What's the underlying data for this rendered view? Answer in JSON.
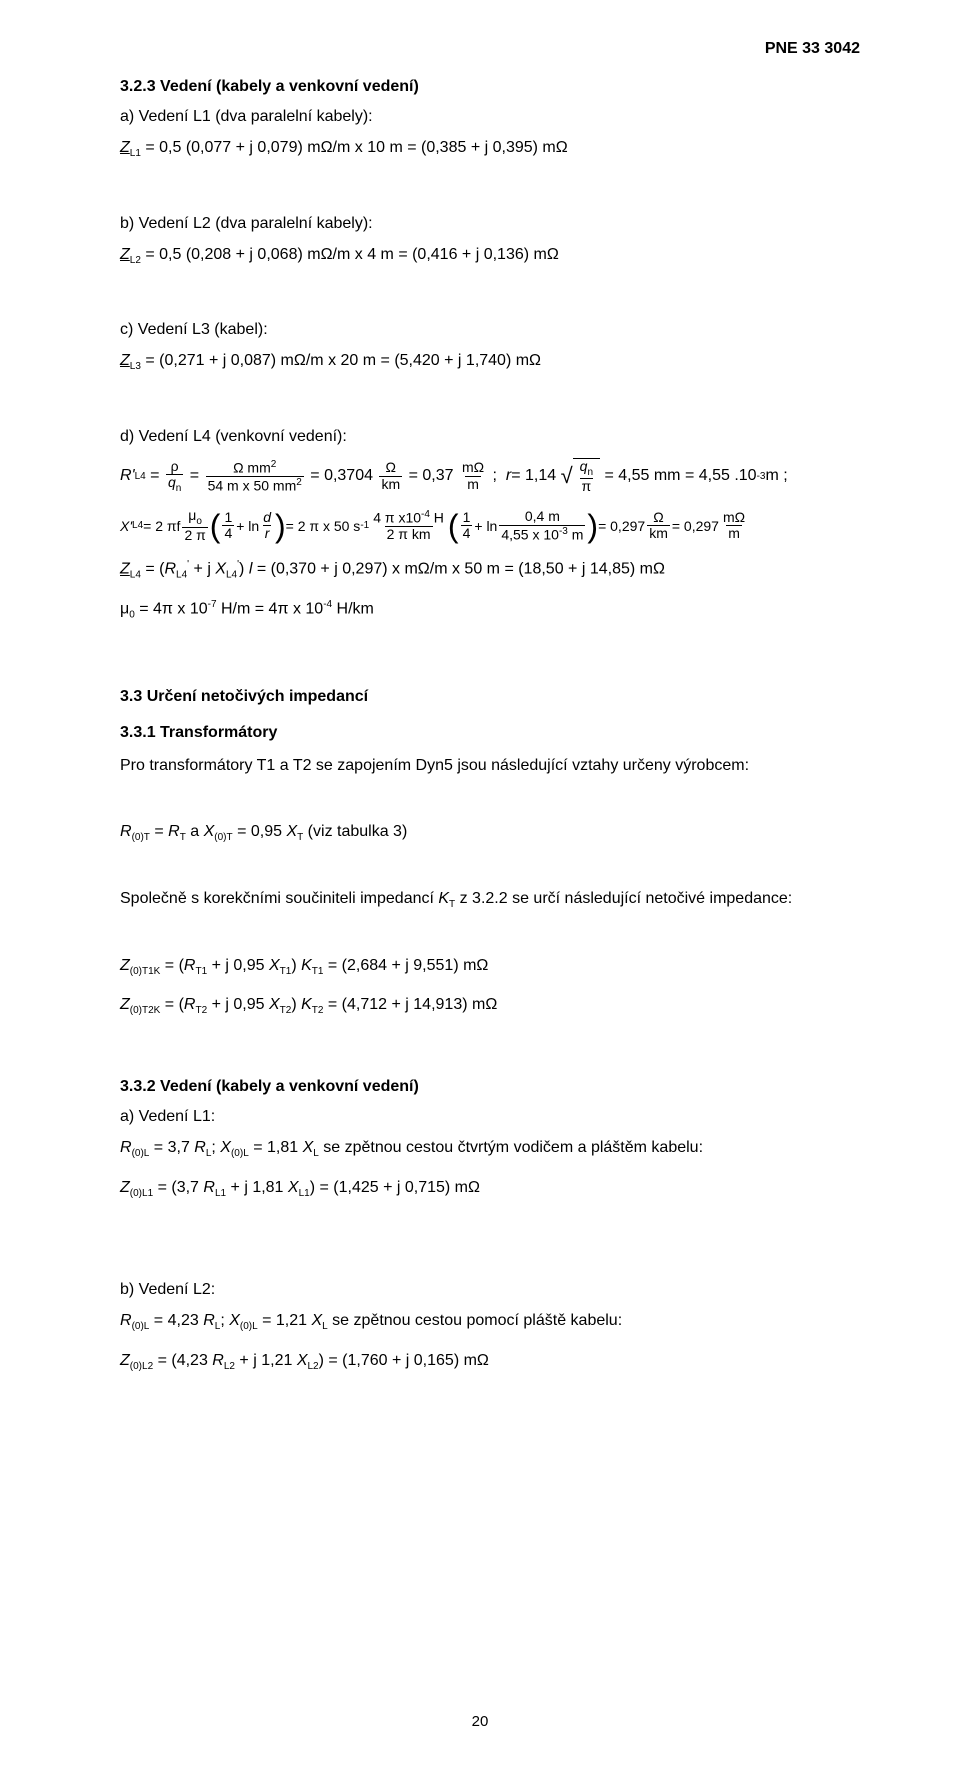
{
  "doc": {
    "header": "PNE 33 3042",
    "page_num": "20"
  },
  "s323": {
    "heading": "3.2.3   Vedení (kabely a venkovní vedení)",
    "a_label": "a) Vedení L1 (dva paralelní kabely):",
    "a_eq": "Z_L1 = 0,5 (0,077 + j 0,079) mΩ/m x 10 m = (0,385 + j 0,395) mΩ",
    "b_label": "b) Vedení L2 (dva paralelní kabely):",
    "b_eq": "Z_L2 = 0,5 (0,208 + j 0,068) mΩ/m x 4 m = (0,416 + j 0,136) mΩ",
    "c_label": "c) Vedení L3 (kabel):",
    "c_eq": "Z_L3 = (0,271 + j 0,087) mΩ/m x 20 m = (5,420 + j 1,740) mΩ",
    "d_label": "d) Vedení L4 (venkovní vedení):",
    "d_R": {
      "lhs": "R'",
      "lhs_sub": "L4",
      "rho": "ρ",
      "qn": "q_n",
      "ohm_mm2": "Ω mm²",
      "den": "54 m x 50 mm²",
      "v1": "0,3704",
      "u1n": "Ω",
      "u1d": "km",
      "v2": "0,37",
      "u2n": "mΩ",
      "u2d": "m",
      "r_eq": "r = 1,14",
      "sqrt_num": "q_n",
      "sqrt_den": "π",
      "val3": "4,55 mm = 4,55 .10⁻³ m ;"
    },
    "d_X": {
      "lhs": "X'",
      "lhs_sub": "L4",
      "pre": "2 πf",
      "mu_num": "μₒ",
      "mu_den": "2 π",
      "quarter": "1",
      "quarter_d": "4",
      "ln": "ln",
      "d": "d",
      "r": "r",
      "mid": "2 π x 50 s⁻¹",
      "f2n": "4 π x 10⁻⁴ H",
      "f2d": "2 π km",
      "ln2n": "0,4 m",
      "ln2d": "4,55 x 10⁻³ m",
      "val1": "0,297",
      "u1n": "Ω",
      "u1d": "km",
      "val2": "0,297",
      "u2n": "mΩ",
      "u2d": "m"
    },
    "d_Z": "Z_L4 = (R_L4' + j X_L4') l = (0,370 + j 0,297) x mΩ/m x 50 m = (18,50 + j 14,85) mΩ",
    "d_mu": "μ₀ = 4π x 10⁻⁷ H/m = 4π x 10⁻⁴ H/km"
  },
  "s33": {
    "heading": "3.3   Určení netočivých impedancí",
    "s331_heading": "3.3.1   Transformátory",
    "s331_body": "Pro transformátory T1 a T2 se zapojením Dyn5 jsou následující vztahy určeny výrobcem:",
    "s331_eq": "R_(0)T = R_T a X_(0)T = 0,95 X_T (viz tabulka 3)",
    "s331_p2": "Společně s korekčními součiniteli impedancí K_T z 3.2.2 se určí následující netočivé impedance:",
    "s331_eqA": "Z_(0)T1K = (R_T1 + j 0,95 X_T1) K_T1 = (2,684 + j 9,551) mΩ",
    "s331_eqB": "Z_(0)T2K = (R_T2 + j 0,95 X_T2) K_T2 = (4,712 + j 14,913) mΩ"
  },
  "s332": {
    "heading": "3.3.2   Vedení (kabely a venkovní vedení)",
    "a_label": "a) Vedení L1:",
    "a_p": "R_(0)L = 3,7 R_L; X_(0)L = 1,81 X_L se zpětnou cestou čtvrtým vodičem a pláštěm kabelu:",
    "a_eq": "Z_(0)L1 = (3,7 R_L1 + j 1,81 X_L1) = (1,425 + j 0,715) mΩ",
    "b_label": "b) Vedení L2:",
    "b_p": "R_(0)L = 4,23 R_L; X_(0)L = 1,21 X_L se zpětnou cestou pomocí pláště kabelu:",
    "b_eq": "Z_(0)L2 = (4,23 R_L2 + j 1,21 X_L2) = (1,760 + j 0,165) mΩ"
  }
}
